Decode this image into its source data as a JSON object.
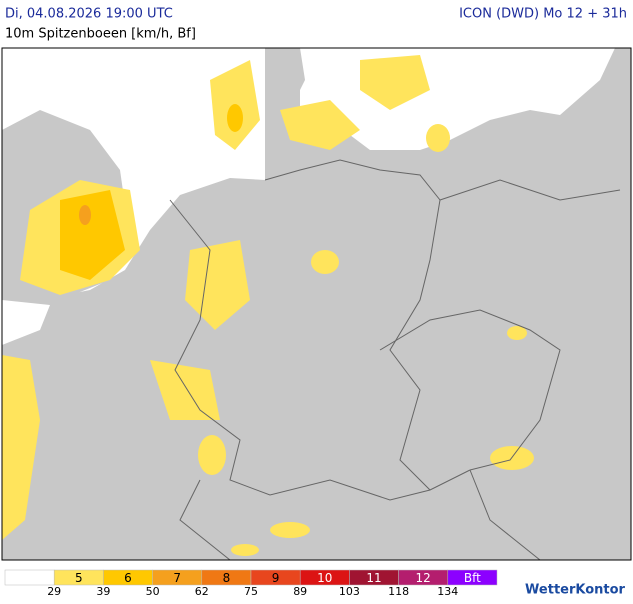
{
  "header": {
    "datetime": "Di, 04.08.2026 19:00 UTC",
    "model": "ICON (DWD) Mo 12 + 31h",
    "parameter": "10m Spitzenboeen [km/h, Bf]"
  },
  "legend": {
    "items": [
      {
        "label": null,
        "color": "#ffffff"
      },
      {
        "label": "5",
        "color": "#ffe45c"
      },
      {
        "label": "6",
        "color": "#ffc800"
      },
      {
        "label": "7",
        "color": "#f5a01e"
      },
      {
        "label": "8",
        "color": "#f07814"
      },
      {
        "label": "9",
        "color": "#e8461e"
      },
      {
        "label": "10",
        "color": "#dc1414"
      },
      {
        "label": "11",
        "color": "#a01432"
      },
      {
        "label": "12",
        "color": "#b41e6e"
      },
      {
        "label": "Bft",
        "color": "#8c00ff"
      }
    ],
    "thresholds": [
      29,
      39,
      50,
      62,
      75,
      89,
      103,
      118,
      134
    ]
  },
  "brand": "WetterKontor"
}
